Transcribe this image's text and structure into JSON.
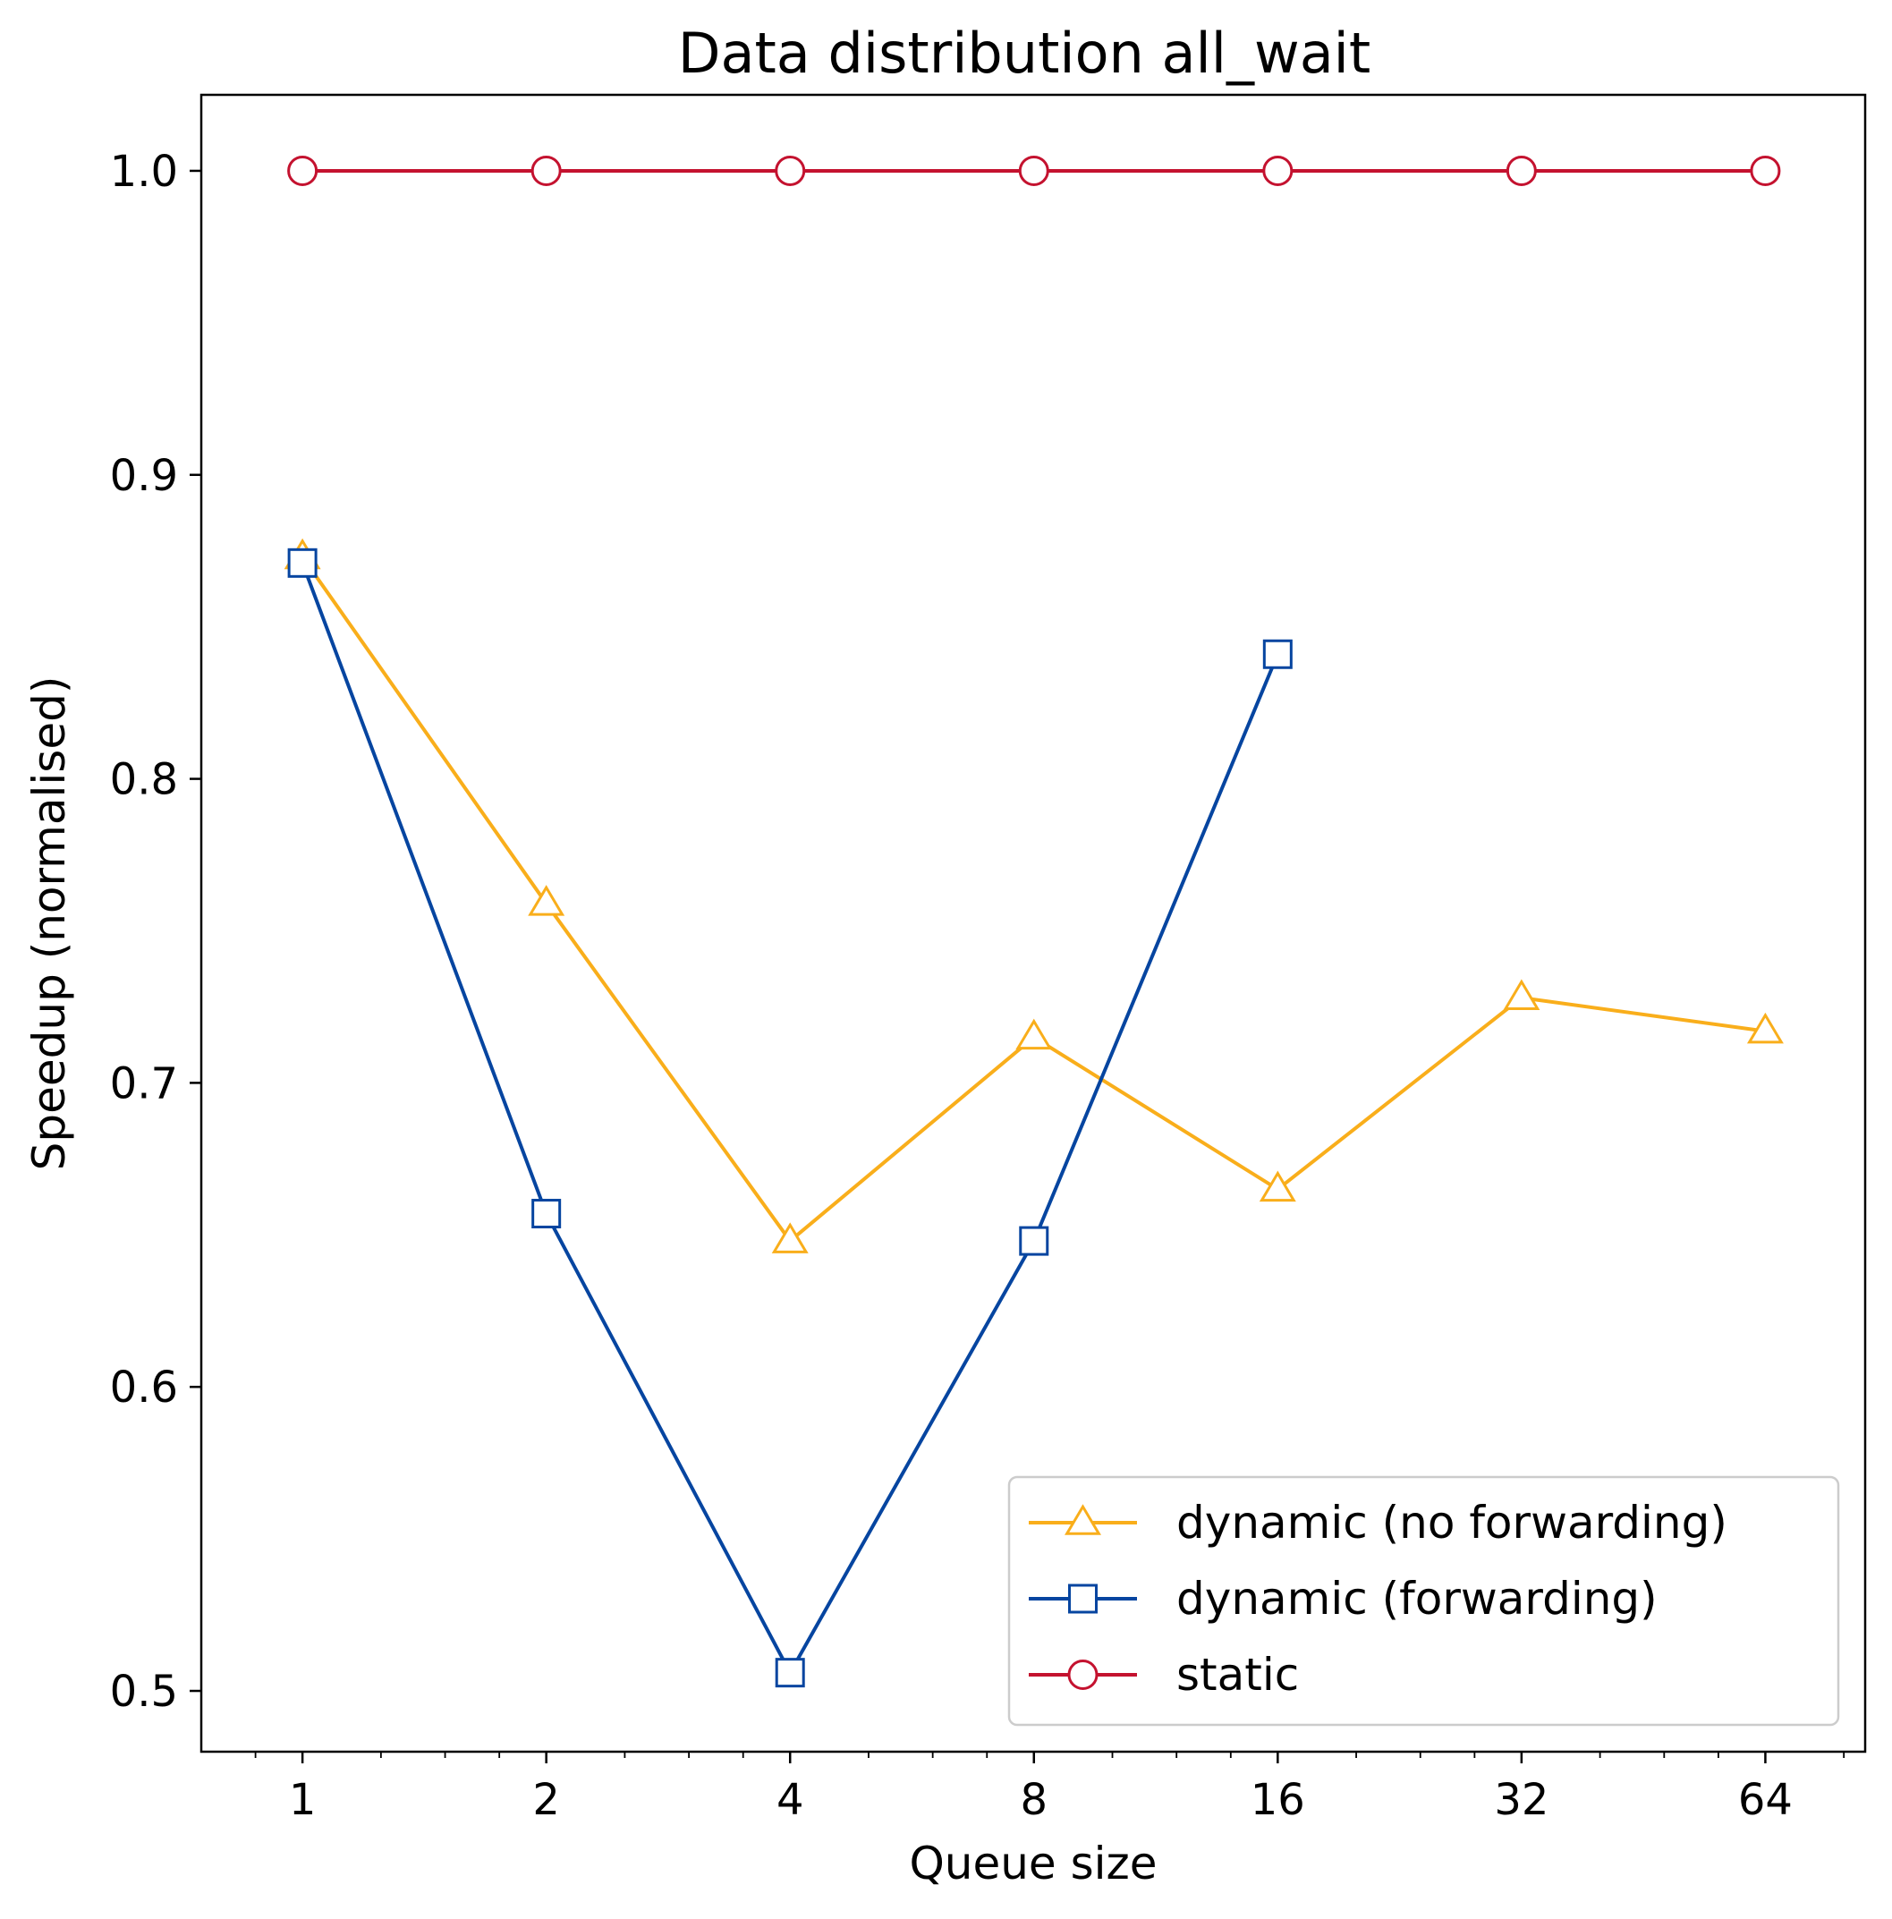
{
  "chart_data": {
    "type": "line",
    "title": "Data distribution all_wait",
    "xlabel": "Queue size",
    "ylabel": "Speedup (normalised)",
    "x_scale": "log2",
    "x": [
      1,
      2,
      4,
      8,
      16,
      32,
      64
    ],
    "x_tick_labels": [
      "1",
      "2",
      "4",
      "8",
      "16",
      "32",
      "64"
    ],
    "y_ticks": [
      0.5,
      0.6,
      0.7,
      0.8,
      0.9,
      1.0
    ],
    "y_tick_labels": [
      "0.5",
      "0.6",
      "0.7",
      "0.8",
      "0.9",
      "1.0"
    ],
    "xlim": [
      0.75,
      85
    ],
    "ylim": [
      0.48,
      1.025
    ],
    "grid": false,
    "legend_position": "lower-right",
    "series": [
      {
        "name": "dynamic (no forwarding)",
        "color": "#f9ae1b",
        "marker": "triangle",
        "x": [
          1,
          2,
          4,
          8,
          16,
          32,
          64
        ],
        "values": [
          0.873,
          0.759,
          0.648,
          0.715,
          0.665,
          0.728,
          0.717
        ]
      },
      {
        "name": "dynamic (forwarding)",
        "color": "#0645a0",
        "marker": "square",
        "x": [
          1,
          2,
          4,
          8,
          16
        ],
        "values": [
          0.871,
          0.657,
          0.506,
          0.648,
          0.841
        ]
      },
      {
        "name": "static",
        "color": "#c4122f",
        "marker": "circle",
        "x": [
          1,
          2,
          4,
          8,
          16,
          32,
          64
        ],
        "values": [
          1.0,
          1.0,
          1.0,
          1.0,
          1.0,
          1.0,
          1.0
        ]
      }
    ]
  }
}
